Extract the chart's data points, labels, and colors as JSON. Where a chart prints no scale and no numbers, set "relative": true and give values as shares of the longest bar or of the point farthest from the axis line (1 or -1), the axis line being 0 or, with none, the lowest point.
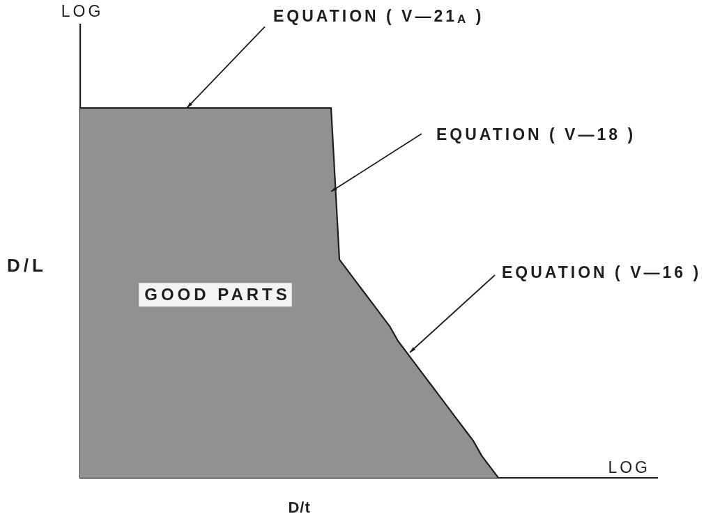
{
  "chart_data": {
    "type": "area",
    "relative": true,
    "xlabel": "D/t",
    "ylabel": "D/L",
    "categories": [
      null,
      null,
      null,
      null,
      null,
      null,
      null,
      null,
      null,
      null,
      null,
      null,
      null,
      null,
      null,
      null,
      null,
      null,
      null,
      null,
      null,
      null,
      null,
      null,
      null,
      null,
      null,
      null,
      null,
      null,
      null,
      null,
      null,
      null,
      null,
      null,
      null,
      null,
      null,
      null,
      null,
      null,
      null,
      null,
      null,
      null,
      null,
      null,
      null,
      null,
      null,
      null,
      null,
      null,
      null,
      null,
      null,
      null,
      null,
      null,
      null,
      null,
      null,
      null,
      null,
      null,
      null,
      null,
      null,
      null
    ],
    "series": [
      {
        "name": "GOOD PARTS",
        "color": "#919191",
        "values": [
          1,
          1,
          1,
          1,
          1,
          1,
          1,
          1,
          1,
          1,
          1,
          1,
          1,
          1,
          1,
          1,
          1,
          1,
          1,
          1,
          1,
          1,
          1,
          1,
          1,
          1,
          1,
          1,
          1,
          1,
          1,
          0.59,
          0.56,
          0.53,
          0.5,
          0.47,
          0.44,
          0.41,
          0.37,
          0.34,
          0.31,
          0.28,
          0.25,
          0.22,
          0.19,
          0.16,
          0.13,
          0.1,
          0.06,
          0.03,
          0,
          null,
          null,
          null,
          null,
          null,
          null,
          null,
          null,
          null,
          null,
          null,
          null,
          null,
          null,
          null,
          null,
          null,
          null,
          null
        ]
      }
    ],
    "annotations": [
      "LOG",
      "LOG",
      "EQUATION ( V—21$_{A}$ )",
      "EQUATION ( V—18 )",
      "EQUATION ( V—16 )"
    ]
  }
}
